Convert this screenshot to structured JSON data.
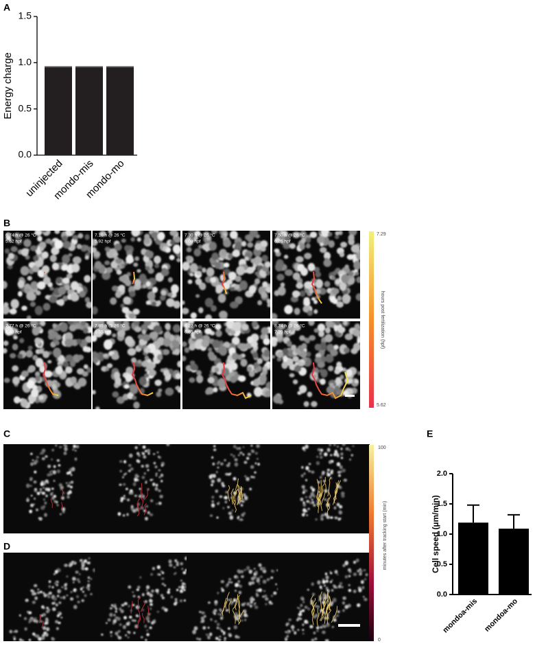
{
  "chart_data": [
    {
      "type": "bar",
      "panel": "A",
      "ylabel": "Energy charge",
      "categories": [
        "uninjected",
        "mondo-mis",
        "mondo-mo"
      ],
      "values": [
        0.95,
        0.95,
        0.95
      ],
      "color": "#231f20",
      "ylim": [
        0,
        1.5
      ],
      "yticks": [
        {
          "value": 0,
          "label": "0.0"
        },
        0.5,
        {
          "value": 1,
          "label": "1.0"
        },
        1.5
      ]
    },
    {
      "type": "bar",
      "panel": "E",
      "ylabel": "Cell speed (µm/min)",
      "categories": [
        "mondoa-mis",
        "mondoa-mo"
      ],
      "values": [
        1.19,
        1.09
      ],
      "errors": [
        0.29,
        0.23
      ],
      "color": "#000000",
      "ylim": [
        0,
        2
      ],
      "yticks": [
        {
          "value": 0,
          "label": "0.0"
        },
        0.5,
        {
          "value": 1,
          "label": "1.0"
        },
        1.5,
        {
          "value": 2,
          "label": "2.0"
        }
      ]
    }
  ],
  "panels": {
    "B": {
      "letter": "B",
      "frames": [
        {
          "time": "6.74 h @ 26 °C",
          "hpf": "5.62 hpf"
        },
        {
          "time": "7.10 h @ 26 °C",
          "hpf": "5.92 hpf"
        },
        {
          "time": "7.30 h @ 26 °C",
          "hpf": "6.09 hpf"
        },
        {
          "time": "7.50 h @ 26 °C",
          "hpf": "6.26 hpf"
        },
        {
          "time": "7.77 h @ 26 °C",
          "hpf": "6.48 hpf"
        },
        {
          "time": "7.85 h @ 26 °C",
          "hpf": "6.55 hpf"
        },
        {
          "time": "8.22 h @ 26 °C",
          "hpf": "6.85 hpf"
        },
        {
          "time": "8.74 h @ 26 °C",
          "hpf": "7.29 hpf"
        }
      ],
      "colorbar": {
        "label": "hours post fertilization (hpf)",
        "min": 5.62,
        "max": 7.29
      }
    },
    "C": {
      "letter": "C"
    },
    "D": {
      "letter": "D"
    },
    "CD_colorbar": {
      "label": "minutes after tracking start (min)",
      "min": 0,
      "max": 100
    }
  }
}
